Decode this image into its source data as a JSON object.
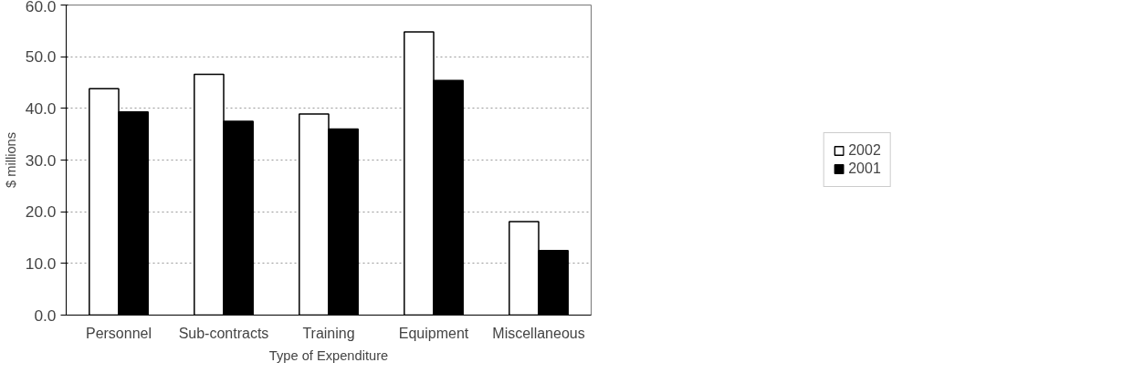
{
  "chart_data": {
    "type": "bar",
    "categories": [
      "Personnel",
      "Sub-contracts",
      "Training",
      "Equipment",
      "Miscellaneous"
    ],
    "xlabel": "Type of Expenditure",
    "ylabel": "$ millions",
    "series": [
      {
        "name": "2002",
        "color": "#ffffff",
        "values": [
          43.8,
          46.6,
          38.9,
          54.8,
          18.1
        ]
      },
      {
        "name": "2001",
        "color": "#000000",
        "values": [
          39.3,
          37.5,
          36.0,
          45.4,
          12.5
        ]
      }
    ],
    "ylim": [
      0,
      60
    ],
    "yticks": [
      {
        "value": 0,
        "label": "0.0"
      },
      {
        "value": 10,
        "label": "10.0"
      },
      {
        "value": 20,
        "label": "20.0"
      },
      {
        "value": 30,
        "label": "30.0"
      },
      {
        "value": 40,
        "label": "40.0"
      },
      {
        "value": 50,
        "label": "50.0"
      },
      {
        "value": 60,
        "label": "60.0"
      }
    ],
    "grid": "y",
    "legend": "right"
  }
}
